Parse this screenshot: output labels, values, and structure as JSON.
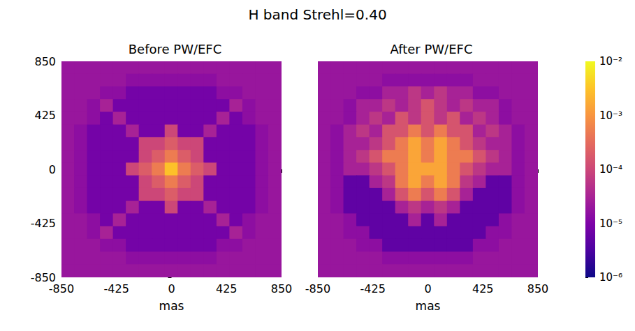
{
  "chart_data": {
    "type": "heatmap",
    "title": "H band Strehl=0.40",
    "log": true,
    "xlabel": "mas",
    "xlim": [
      -850,
      850
    ],
    "ylim": [
      -850,
      850
    ],
    "xticks": [
      -850,
      -425,
      0,
      425,
      850
    ],
    "yticks": [
      -850,
      -425,
      0,
      425,
      850
    ],
    "x": [
      -800,
      -700,
      -600,
      -500,
      -400,
      -300,
      -200,
      -100,
      0,
      100,
      200,
      300,
      400,
      500,
      600,
      700,
      800
    ],
    "y": [
      800,
      700,
      600,
      500,
      400,
      300,
      200,
      100,
      0,
      -100,
      -200,
      -300,
      -400,
      -500,
      -600,
      -700,
      -800
    ],
    "colorbar": {
      "range": [
        1e-06,
        0.01
      ],
      "ticks": [
        {
          "value": 1e-06,
          "label": "10⁻⁶"
        },
        {
          "value": 1e-05,
          "label": "10⁻⁵"
        },
        {
          "value": 0.0001,
          "label": "10⁻⁴"
        },
        {
          "value": 0.001,
          "label": "10⁻³"
        },
        {
          "value": 0.01,
          "label": "10⁻²"
        }
      ]
    },
    "panels": [
      {
        "title": "Before PW/EFC",
        "values": [
          [
            2e-05,
            2e-05,
            2e-05,
            2e-05,
            2e-05,
            2e-05,
            2e-05,
            2e-05,
            2e-05,
            2e-05,
            2e-05,
            2e-05,
            2e-05,
            2e-05,
            2e-05,
            2e-05,
            2e-05
          ],
          [
            2e-05,
            2e-05,
            2e-05,
            2e-05,
            2e-05,
            1.5e-05,
            1.5e-05,
            1.5e-05,
            1.5e-05,
            1.5e-05,
            1.5e-05,
            1.5e-05,
            2e-05,
            2e-05,
            2e-05,
            2e-05,
            2e-05
          ],
          [
            2e-05,
            2e-05,
            2e-05,
            1.5e-05,
            1.5e-05,
            8e-06,
            8e-06,
            8e-06,
            8e-06,
            8e-06,
            8e-06,
            8e-06,
            1.5e-05,
            1.5e-05,
            2e-05,
            2e-05,
            2e-05
          ],
          [
            2e-05,
            2e-05,
            1.5e-05,
            3e-05,
            8e-06,
            8e-06,
            8e-06,
            8e-06,
            8e-06,
            8e-06,
            8e-06,
            8e-06,
            8e-06,
            3e-05,
            1.5e-05,
            2e-05,
            2e-05
          ],
          [
            2e-05,
            2e-05,
            1.5e-05,
            8e-06,
            3e-05,
            8e-06,
            8e-06,
            8e-06,
            8e-06,
            8e-06,
            8e-06,
            8e-06,
            3e-05,
            8e-06,
            1.5e-05,
            2e-05,
            2e-05
          ],
          [
            2e-05,
            1.5e-05,
            8e-06,
            8e-06,
            8e-06,
            3e-05,
            8e-06,
            8e-06,
            0.0001,
            8e-06,
            8e-06,
            3e-05,
            8e-06,
            8e-06,
            8e-06,
            1.5e-05,
            2e-05
          ],
          [
            2e-05,
            1.5e-05,
            8e-06,
            8e-06,
            8e-06,
            8e-06,
            0.0001,
            0.0001,
            0.0002,
            0.0001,
            0.0001,
            8e-06,
            8e-06,
            8e-06,
            8e-06,
            1.5e-05,
            2e-05
          ],
          [
            2e-05,
            1.5e-05,
            8e-06,
            8e-06,
            8e-06,
            8e-06,
            0.0001,
            0.0002,
            0.0005,
            0.0002,
            0.0001,
            8e-06,
            8e-06,
            8e-06,
            8e-06,
            1.5e-05,
            2e-05
          ],
          [
            2e-05,
            1.5e-05,
            8e-06,
            8e-06,
            8e-06,
            0.0001,
            0.0002,
            0.0005,
            0.003,
            0.0005,
            0.0002,
            0.0001,
            8e-06,
            8e-06,
            8e-06,
            1.5e-05,
            2e-05
          ],
          [
            2e-05,
            1.5e-05,
            8e-06,
            8e-06,
            8e-06,
            8e-06,
            0.0001,
            0.0002,
            0.0005,
            0.0002,
            0.0001,
            8e-06,
            8e-06,
            8e-06,
            8e-06,
            1.5e-05,
            2e-05
          ],
          [
            2e-05,
            1.5e-05,
            8e-06,
            8e-06,
            8e-06,
            8e-06,
            0.0001,
            0.0001,
            0.0002,
            0.0001,
            0.0001,
            8e-06,
            8e-06,
            8e-06,
            8e-06,
            1.5e-05,
            2e-05
          ],
          [
            2e-05,
            1.5e-05,
            8e-06,
            8e-06,
            8e-06,
            3e-05,
            8e-06,
            8e-06,
            0.0001,
            8e-06,
            8e-06,
            3e-05,
            8e-06,
            8e-06,
            8e-06,
            1.5e-05,
            2e-05
          ],
          [
            2e-05,
            2e-05,
            1.5e-05,
            8e-06,
            3e-05,
            8e-06,
            8e-06,
            8e-06,
            8e-06,
            8e-06,
            8e-06,
            8e-06,
            3e-05,
            8e-06,
            1.5e-05,
            2e-05,
            2e-05
          ],
          [
            2e-05,
            2e-05,
            1.5e-05,
            3e-05,
            8e-06,
            8e-06,
            8e-06,
            8e-06,
            8e-06,
            8e-06,
            8e-06,
            8e-06,
            8e-06,
            3e-05,
            1.5e-05,
            2e-05,
            2e-05
          ],
          [
            2e-05,
            2e-05,
            2e-05,
            1.5e-05,
            1.5e-05,
            8e-06,
            8e-06,
            8e-06,
            8e-06,
            8e-06,
            8e-06,
            8e-06,
            1.5e-05,
            1.5e-05,
            2e-05,
            2e-05,
            2e-05
          ],
          [
            2e-05,
            2e-05,
            2e-05,
            2e-05,
            2e-05,
            1.5e-05,
            1.5e-05,
            1.5e-05,
            1.5e-05,
            1.5e-05,
            1.5e-05,
            1.5e-05,
            2e-05,
            2e-05,
            2e-05,
            2e-05,
            2e-05
          ],
          [
            2e-05,
            2e-05,
            2e-05,
            2e-05,
            2e-05,
            2e-05,
            2e-05,
            2e-05,
            2e-05,
            2e-05,
            2e-05,
            2e-05,
            2e-05,
            2e-05,
            2e-05,
            2e-05,
            2e-05
          ]
        ]
      },
      {
        "title": "After PW/EFC",
        "tick_labels": "x",
        "values": [
          [
            2e-05,
            2e-05,
            2e-05,
            2e-05,
            2e-05,
            2e-05,
            2e-05,
            2e-05,
            2e-05,
            2e-05,
            2e-05,
            2e-05,
            2e-05,
            2e-05,
            2e-05,
            2e-05,
            2e-05
          ],
          [
            2e-05,
            2e-05,
            2e-05,
            2e-05,
            2e-05,
            1.5e-05,
            1.5e-05,
            1.5e-05,
            1.5e-05,
            1.5e-05,
            1.5e-05,
            1.5e-05,
            2e-05,
            2e-05,
            2e-05,
            2e-05,
            2e-05
          ],
          [
            2e-05,
            2e-05,
            2e-05,
            1.5e-05,
            1.5e-05,
            3e-05,
            3e-05,
            6e-05,
            3e-05,
            6e-05,
            3e-05,
            3e-05,
            1.5e-05,
            1.5e-05,
            2e-05,
            2e-05,
            2e-05
          ],
          [
            2e-05,
            2e-05,
            1.5e-05,
            3e-05,
            3e-05,
            6e-05,
            3e-05,
            6e-05,
            0.00015,
            6e-05,
            3e-05,
            6e-05,
            3e-05,
            3e-05,
            1.5e-05,
            2e-05,
            2e-05
          ],
          [
            2e-05,
            2e-05,
            1.5e-05,
            3e-05,
            6e-05,
            3e-05,
            0.00015,
            6e-05,
            0.00015,
            6e-05,
            0.00015,
            3e-05,
            6e-05,
            3e-05,
            1.5e-05,
            2e-05,
            2e-05
          ],
          [
            2e-05,
            1.5e-05,
            3e-05,
            6e-05,
            3e-05,
            0.00015,
            0.00015,
            0.0005,
            0.00015,
            0.0005,
            0.00015,
            0.00015,
            3e-05,
            6e-05,
            3e-05,
            1.5e-05,
            2e-05
          ],
          [
            2e-05,
            1.5e-05,
            3e-05,
            3e-05,
            6e-05,
            0.00015,
            0.0005,
            0.0015,
            0.0005,
            0.0015,
            0.0005,
            0.00015,
            6e-05,
            3e-05,
            3e-05,
            1.5e-05,
            2e-05
          ],
          [
            2e-05,
            1.5e-05,
            3e-05,
            6e-05,
            0.00015,
            0.0005,
            0.0005,
            0.0015,
            0.0005,
            0.0015,
            0.0005,
            0.0005,
            0.00015,
            6e-05,
            3e-05,
            1.5e-05,
            2e-05
          ],
          [
            2e-05,
            1.5e-05,
            3e-05,
            3e-05,
            6e-05,
            0.00015,
            0.0005,
            0.0015,
            0.0015,
            0.0015,
            0.0005,
            0.00015,
            6e-05,
            3e-05,
            3e-05,
            1.5e-05,
            2e-05
          ],
          [
            2e-05,
            1.5e-05,
            5e-06,
            5e-06,
            3e-05,
            6e-05,
            0.0005,
            0.0015,
            0.0005,
            0.0015,
            0.0005,
            6e-05,
            3e-05,
            5e-06,
            5e-06,
            1.5e-05,
            2e-05
          ],
          [
            2e-05,
            1.5e-05,
            5e-06,
            5e-06,
            5e-06,
            3e-05,
            0.00015,
            0.0005,
            0.00015,
            0.0005,
            0.00015,
            3e-05,
            5e-06,
            5e-06,
            5e-06,
            1.5e-05,
            2e-05
          ],
          [
            2e-05,
            1.5e-05,
            5e-06,
            5e-06,
            5e-06,
            5e-06,
            3e-05,
            6e-05,
            3e-05,
            6e-05,
            3e-05,
            5e-06,
            5e-06,
            5e-06,
            5e-06,
            1.5e-05,
            2e-05
          ],
          [
            2e-05,
            2e-05,
            1.5e-05,
            5e-06,
            5e-06,
            5e-06,
            5e-06,
            3e-05,
            5e-06,
            3e-05,
            5e-06,
            5e-06,
            5e-06,
            5e-06,
            1.5e-05,
            2e-05,
            2e-05
          ],
          [
            2e-05,
            2e-05,
            1.5e-05,
            1.5e-05,
            5e-06,
            5e-06,
            5e-06,
            5e-06,
            5e-06,
            5e-06,
            5e-06,
            5e-06,
            5e-06,
            1.5e-05,
            1.5e-05,
            2e-05,
            2e-05
          ],
          [
            2e-05,
            2e-05,
            2e-05,
            1.5e-05,
            1.5e-05,
            5e-06,
            5e-06,
            5e-06,
            5e-06,
            5e-06,
            5e-06,
            5e-06,
            1.5e-05,
            1.5e-05,
            2e-05,
            2e-05,
            2e-05
          ],
          [
            2e-05,
            2e-05,
            2e-05,
            2e-05,
            2e-05,
            1.5e-05,
            1.5e-05,
            1.5e-05,
            1.5e-05,
            1.5e-05,
            1.5e-05,
            1.5e-05,
            2e-05,
            2e-05,
            2e-05,
            2e-05,
            2e-05
          ],
          [
            2e-05,
            2e-05,
            2e-05,
            2e-05,
            2e-05,
            2e-05,
            2e-05,
            2e-05,
            2e-05,
            2e-05,
            2e-05,
            2e-05,
            2e-05,
            2e-05,
            2e-05,
            2e-05,
            2e-05
          ]
        ]
      }
    ]
  }
}
